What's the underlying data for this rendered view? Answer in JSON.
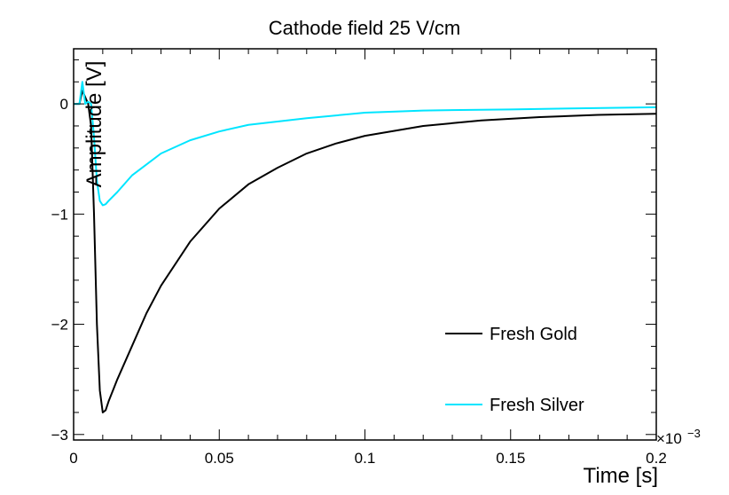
{
  "chart_data": {
    "type": "line",
    "title": "Cathode field 25 V/cm",
    "xlabel": "Time [s]",
    "ylabel": "Amplitude [V]",
    "x_multiplier": "×10",
    "x_multiplier_exp": "−3",
    "xlim": [
      0,
      0.2
    ],
    "ylim": [
      -3.05,
      0.5
    ],
    "x_ticks": [
      {
        "value": 0,
        "label": "0"
      },
      {
        "value": 0.05,
        "label": "0.05"
      },
      {
        "value": 0.1,
        "label": "0.1"
      },
      {
        "value": 0.15,
        "label": "0.15"
      },
      {
        "value": 0.2,
        "label": "0.2"
      }
    ],
    "y_ticks": [
      {
        "value": 0,
        "label": "0"
      },
      {
        "value": -1,
        "label": "−1"
      },
      {
        "value": -2,
        "label": "−2"
      },
      {
        "value": -3,
        "label": "−3"
      }
    ],
    "legend": {
      "placement": "bottom-right"
    },
    "series": [
      {
        "name": "Fresh Gold",
        "color": "#000000",
        "x": [
          0,
          0.002,
          0.003,
          0.005,
          0.006,
          0.007,
          0.008,
          0.009,
          0.01,
          0.011,
          0.012,
          0.015,
          0.02,
          0.025,
          0.03,
          0.04,
          0.05,
          0.06,
          0.07,
          0.08,
          0.09,
          0.1,
          0.12,
          0.14,
          0.16,
          0.18,
          0.2
        ],
        "y": [
          0,
          0.0,
          0.12,
          0.0,
          -0.2,
          -1.0,
          -2.0,
          -2.6,
          -2.8,
          -2.78,
          -2.7,
          -2.5,
          -2.2,
          -1.9,
          -1.65,
          -1.25,
          -0.95,
          -0.73,
          -0.58,
          -0.45,
          -0.36,
          -0.29,
          -0.2,
          -0.15,
          -0.12,
          -0.1,
          -0.09
        ]
      },
      {
        "name": "Fresh Silver",
        "color": "#00e5ff",
        "x": [
          0,
          0.002,
          0.003,
          0.004,
          0.005,
          0.006,
          0.007,
          0.008,
          0.009,
          0.01,
          0.011,
          0.012,
          0.015,
          0.02,
          0.025,
          0.03,
          0.04,
          0.05,
          0.06,
          0.08,
          0.1,
          0.12,
          0.15,
          0.2
        ],
        "y": [
          0,
          0.0,
          0.2,
          0.0,
          0.02,
          0.0,
          -0.3,
          -0.7,
          -0.88,
          -0.92,
          -0.91,
          -0.88,
          -0.8,
          -0.65,
          -0.55,
          -0.45,
          -0.33,
          -0.25,
          -0.19,
          -0.13,
          -0.08,
          -0.06,
          -0.05,
          -0.03
        ]
      }
    ]
  }
}
